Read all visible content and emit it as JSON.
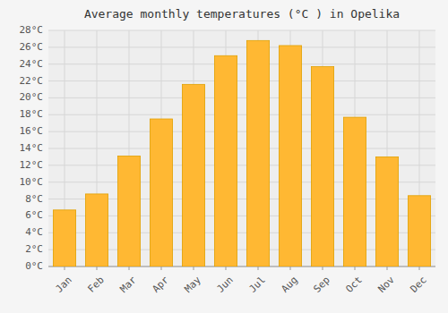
{
  "chart_data": {
    "type": "bar",
    "title": "Average monthly temperatures (°C ) in Opelika",
    "categories": [
      "Jan",
      "Feb",
      "Mar",
      "Apr",
      "May",
      "Jun",
      "Jul",
      "Aug",
      "Sep",
      "Oct",
      "Nov",
      "Dec"
    ],
    "values": [
      6.7,
      8.6,
      13.1,
      17.5,
      21.6,
      25.0,
      26.8,
      26.2,
      23.7,
      17.7,
      13.0,
      8.4
    ],
    "color": "#FFB833",
    "ylim": [
      0,
      28
    ],
    "yticks": [
      {
        "value": 0,
        "label": "0°C"
      },
      {
        "value": 2,
        "label": "2°C"
      },
      {
        "value": 4,
        "label": "4°C"
      },
      {
        "value": 6,
        "label": "6°C"
      },
      {
        "value": 8,
        "label": "8°C"
      },
      {
        "value": 10,
        "label": "10°C"
      },
      {
        "value": 12,
        "label": "12°C"
      },
      {
        "value": 14,
        "label": "14°C"
      },
      {
        "value": 16,
        "label": "16°C"
      },
      {
        "value": 18,
        "label": "18°C"
      },
      {
        "value": 20,
        "label": "20°C"
      },
      {
        "value": 22,
        "label": "22°C"
      },
      {
        "value": 24,
        "label": "24°C"
      },
      {
        "value": 26,
        "label": "26°C"
      },
      {
        "value": 28,
        "label": "28°C"
      }
    ],
    "grid": true
  }
}
